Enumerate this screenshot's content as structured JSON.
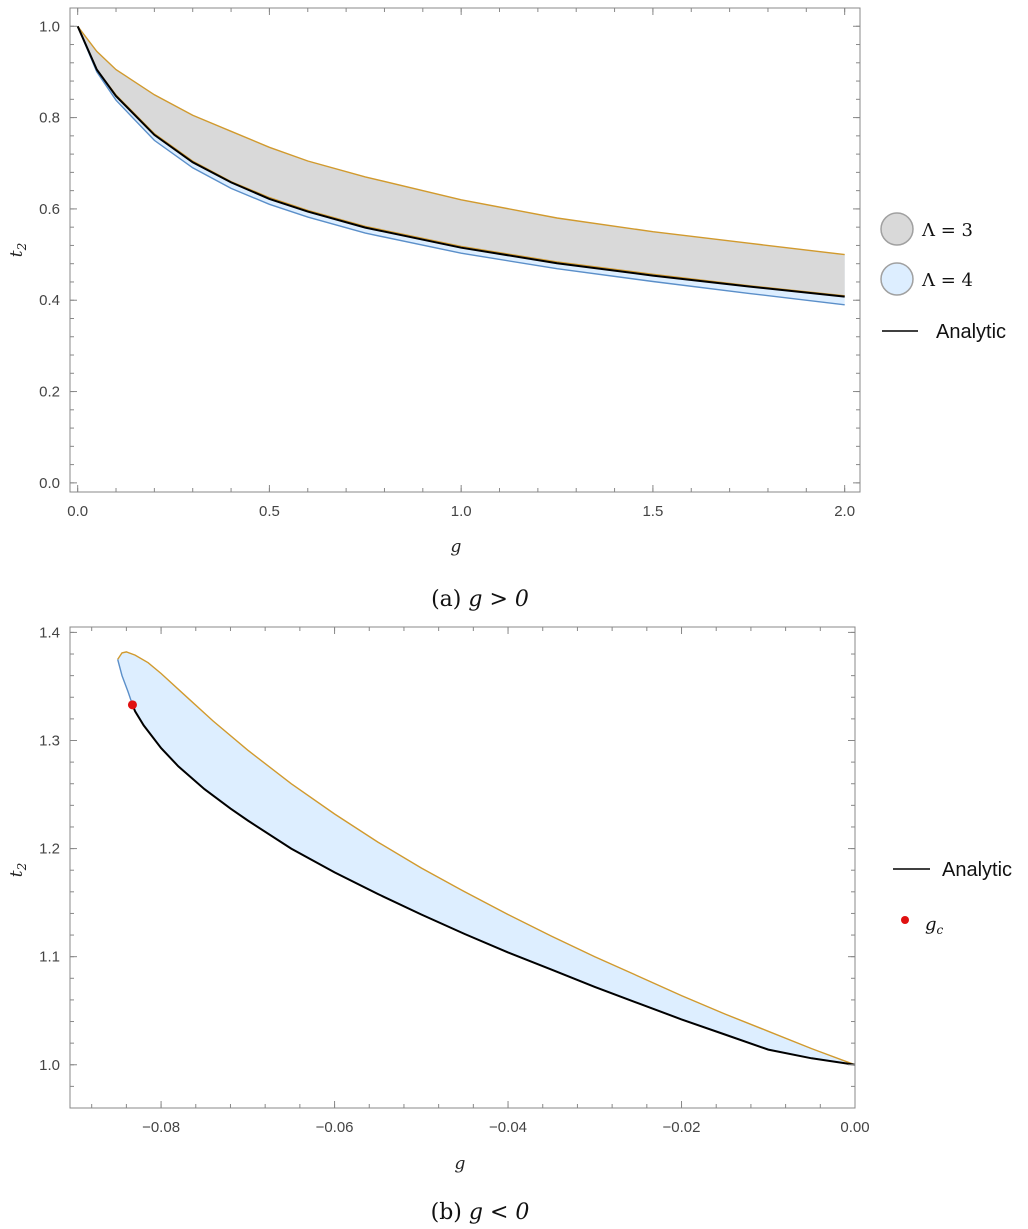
{
  "colors": {
    "lambda3_fill": "#d9d9d9",
    "lambda3_edge": "#a0a0a0",
    "lambda4_fill": "#ddeeff",
    "lambda4_edge": "#5b8fc9",
    "upper_edge": "#d19a2e",
    "analytic": "#000000",
    "gc_point": "#e01010"
  },
  "chart_data": [
    {
      "type": "area",
      "caption_prefix": "(a)",
      "caption_math": "g > 0",
      "xlabel": "g",
      "ylabel": "t",
      "ylabel_sub": "2",
      "xlim": [
        -0.02,
        2.04
      ],
      "ylim": [
        -0.02,
        1.04
      ],
      "xticks": [
        0,
        0.5,
        1,
        1.5,
        2
      ],
      "xtick_labels": [
        "0.0",
        "0.5",
        "1.0",
        "1.5",
        "2.0"
      ],
      "yticks": [
        0,
        0.2,
        0.4,
        0.6,
        0.8,
        1.0
      ],
      "ytick_labels": [
        "0.0",
        "0.2",
        "0.4",
        "0.6",
        "0.8",
        "1.0"
      ],
      "legend": [
        {
          "kind": "disk",
          "fill": "#d9d9d9",
          "label_math": "Λ = 3"
        },
        {
          "kind": "disk",
          "fill": "#ddeeff",
          "label_math": "Λ = 4"
        },
        {
          "kind": "line",
          "label": "Analytic"
        }
      ],
      "legend_position": "right",
      "series": [
        {
          "name": "Λ = 3 upper",
          "x": [
            0,
            0.05,
            0.1,
            0.2,
            0.3,
            0.4,
            0.5,
            0.6,
            0.75,
            1.0,
            1.25,
            1.5,
            1.75,
            2.0
          ],
          "y": [
            1.0,
            0.945,
            0.905,
            0.85,
            0.805,
            0.77,
            0.735,
            0.705,
            0.67,
            0.62,
            0.58,
            0.55,
            0.525,
            0.5
          ]
        },
        {
          "name": "Λ = 3 lower",
          "x": [
            0,
            0.05,
            0.1,
            0.2,
            0.3,
            0.4,
            0.5,
            0.6,
            0.75,
            1.0,
            1.25,
            1.5,
            1.75,
            2.0
          ],
          "y": [
            1.0,
            0.905,
            0.85,
            0.765,
            0.705,
            0.66,
            0.625,
            0.597,
            0.562,
            0.518,
            0.484,
            0.457,
            0.432,
            0.41
          ]
        },
        {
          "name": "Λ = 4 lower",
          "x": [
            0,
            0.05,
            0.1,
            0.2,
            0.3,
            0.4,
            0.5,
            0.6,
            0.75,
            1.0,
            1.25,
            1.5,
            1.75,
            2.0
          ],
          "y": [
            1.0,
            0.9,
            0.838,
            0.75,
            0.69,
            0.645,
            0.61,
            0.582,
            0.547,
            0.503,
            0.469,
            0.441,
            0.415,
            0.39
          ]
        },
        {
          "name": "Analytic",
          "x": [
            0,
            0.05,
            0.1,
            0.2,
            0.3,
            0.4,
            0.5,
            0.6,
            0.75,
            1.0,
            1.25,
            1.5,
            1.75,
            2.0
          ],
          "y": [
            1.0,
            0.905,
            0.847,
            0.762,
            0.702,
            0.658,
            0.622,
            0.594,
            0.559,
            0.515,
            0.481,
            0.454,
            0.43,
            0.408
          ]
        }
      ]
    },
    {
      "type": "area",
      "caption_prefix": "(b)",
      "caption_math": "g < 0",
      "xlabel": "g",
      "ylabel": "t",
      "ylabel_sub": "2",
      "xlim": [
        -0.0905,
        0.0
      ],
      "ylim": [
        0.96,
        1.405
      ],
      "xticks": [
        -0.08,
        -0.06,
        -0.04,
        -0.02,
        0.0
      ],
      "xtick_labels": [
        "−0.08",
        "−0.06",
        "−0.04",
        "−0.02",
        "0.00"
      ],
      "yticks": [
        1.0,
        1.1,
        1.2,
        1.3,
        1.4
      ],
      "ytick_labels": [
        "1.0",
        "1.1",
        "1.2",
        "1.3",
        "1.4"
      ],
      "legend": [
        {
          "kind": "line",
          "label": "Analytic"
        },
        {
          "kind": "dot",
          "label_math": "g",
          "label_sub": "c"
        }
      ],
      "legend_position": "right",
      "gc_point": {
        "x": -0.0833,
        "y": 1.333
      },
      "series": [
        {
          "name": "Λ = 4 upper",
          "x": [
            -0.085,
            -0.0845,
            -0.084,
            -0.083,
            -0.0815,
            -0.08,
            -0.077,
            -0.074,
            -0.07,
            -0.065,
            -0.06,
            -0.055,
            -0.05,
            -0.045,
            -0.04,
            -0.035,
            -0.03,
            -0.025,
            -0.02,
            -0.015,
            -0.01,
            -0.005,
            0.0
          ],
          "y": [
            1.375,
            1.381,
            1.382,
            1.379,
            1.372,
            1.362,
            1.34,
            1.318,
            1.291,
            1.26,
            1.232,
            1.206,
            1.182,
            1.16,
            1.139,
            1.119,
            1.1,
            1.082,
            1.064,
            1.047,
            1.031,
            1.015,
            1.0
          ]
        },
        {
          "name": "Λ = 4 lower",
          "x": [
            -0.085,
            -0.0845,
            -0.0838,
            -0.0833
          ],
          "y": [
            1.375,
            1.36,
            1.345,
            1.333
          ]
        },
        {
          "name": "Analytic",
          "x": [
            -0.0833,
            -0.083,
            -0.082,
            -0.08,
            -0.078,
            -0.075,
            -0.072,
            -0.07,
            -0.065,
            -0.06,
            -0.055,
            -0.05,
            -0.045,
            -0.04,
            -0.035,
            -0.03,
            -0.025,
            -0.02,
            -0.015,
            -0.01,
            -0.005,
            0.0
          ],
          "y": [
            1.333,
            1.327,
            1.314,
            1.293,
            1.276,
            1.255,
            1.237,
            1.226,
            1.2,
            1.178,
            1.158,
            1.139,
            1.121,
            1.104,
            1.088,
            1.072,
            1.057,
            1.042,
            1.028,
            1.014,
            1.006,
            1.0
          ]
        }
      ]
    }
  ]
}
